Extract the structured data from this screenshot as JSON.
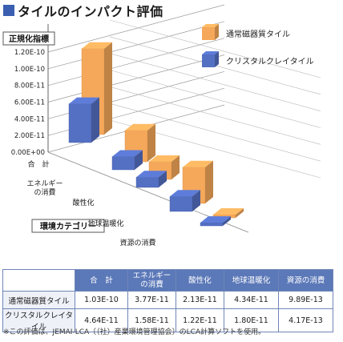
{
  "title": "タイルのインパクト評価",
  "colors": {
    "ceramic": "#f5a85a",
    "crystal": "#5470c3",
    "header": "#5b78b8",
    "title_square": "#3a5fb0"
  },
  "chart_data": {
    "type": "bar",
    "ylabel": "正規化指標",
    "xlabel": "環境カテゴリー",
    "y_ticks": [
      "1.20E-10",
      "1.00E-10",
      "8.00E-11",
      "6.00E-11",
      "4.00E-11",
      "2.00E-11",
      "0.00E+00"
    ],
    "ylim": [
      0,
      1.2e-10
    ],
    "categories": [
      "合　計",
      "エネルギーの消費",
      "酸性化",
      "地球温暖化",
      "資源の消費"
    ],
    "axis_category_labels": [
      "合　計",
      "エネルギー\nの消費",
      "酸性化",
      "地球温暖化",
      "資源の消費"
    ],
    "series": [
      {
        "name": "通常磁器質タイル",
        "values": [
          1.03e-10,
          3.77e-11,
          2.13e-11,
          4.34e-11,
          9.89e-13
        ]
      },
      {
        "name": "クリスタルクレイタイル",
        "values": [
          4.64e-11,
          1.58e-11,
          1.22e-11,
          1.8e-11,
          4.17e-13
        ]
      }
    ],
    "legend_position": "top-right"
  },
  "table": {
    "headers": [
      "合　計",
      "エネルギー\nの消費",
      "酸性化",
      "地球温暖化",
      "資源の消費"
    ],
    "rows": [
      {
        "name": "通常磁器質タイル",
        "values": [
          "1.03E-10",
          "3.77E-11",
          "2.13E-11",
          "4.34E-11",
          "9.89E-13"
        ]
      },
      {
        "name": "クリスタルクレイタイル",
        "values": [
          "4.64E-11",
          "1.58E-11",
          "1.22E-11",
          "1.80E-11",
          "4.17E-13"
        ]
      }
    ]
  },
  "note": "※この評価は、JEMAI-LCA〔（社）産業環境管理協会〕のLCA計算ソフトを使用。"
}
